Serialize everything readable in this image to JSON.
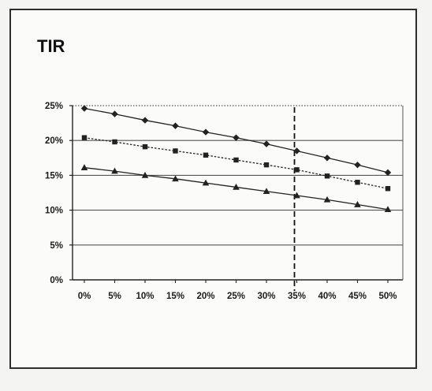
{
  "chart_data": {
    "type": "line",
    "title": "TIR",
    "xlabel": "",
    "ylabel": "",
    "categories": [
      "0%",
      "5%",
      "10%",
      "15%",
      "20%",
      "25%",
      "30%",
      "35%",
      "40%",
      "45%",
      "50%"
    ],
    "y_ticks": [
      "0%",
      "5%",
      "10%",
      "15%",
      "20%",
      "25%"
    ],
    "ylim": [
      0,
      25
    ],
    "grid": "horizontal",
    "reference_line_at": "35%",
    "series": [
      {
        "marker": "diamond",
        "line_style": "solid",
        "values": [
          24.6,
          23.8,
          22.9,
          22.1,
          21.2,
          20.4,
          19.5,
          18.5,
          17.5,
          16.5,
          15.4
        ]
      },
      {
        "marker": "square",
        "line_style": "dotted",
        "values": [
          20.4,
          19.8,
          19.1,
          18.5,
          17.9,
          17.2,
          16.5,
          15.8,
          14.9,
          14.0,
          13.1
        ]
      },
      {
        "marker": "triangle",
        "line_style": "solid",
        "values": [
          16.1,
          15.6,
          15.0,
          14.5,
          13.9,
          13.3,
          12.7,
          12.1,
          11.5,
          10.8,
          10.1
        ]
      }
    ]
  },
  "colors": {
    "line": "#222222",
    "grid": "#555555",
    "frame": "#2e2e2e"
  }
}
